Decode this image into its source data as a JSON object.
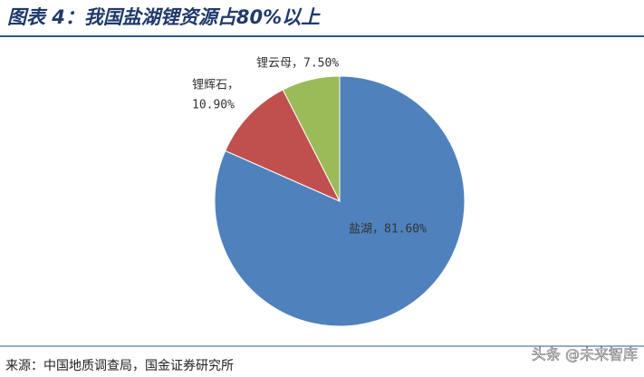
{
  "chart_data": {
    "type": "pie",
    "title": "图表 4：我国盐湖锂资源占80%以上",
    "values": [
      81.6,
      10.9,
      7.5
    ],
    "value_labels": [
      [
        "盐湖，81.60%"
      ],
      [
        "锂辉石，",
        "10.90%"
      ],
      [
        "锂云母，7.50%"
      ]
    ],
    "colors": [
      "#4f81bd",
      "#c0504d",
      "#9bbb59"
    ],
    "source": "来源：中国地质调查局，国金证券研究所",
    "watermark": "头条 @未来智库"
  }
}
